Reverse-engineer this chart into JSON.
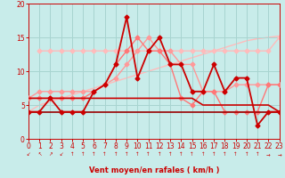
{
  "bg_color": "#c8ecea",
  "grid_color": "#a8d4d0",
  "xlabel": "Vent moyen/en rafales ( km/h )",
  "xlabel_color": "#cc0000",
  "ylim": [
    0,
    20
  ],
  "xlim": [
    0,
    23
  ],
  "yticks": [
    0,
    5,
    10,
    15,
    20
  ],
  "xticks": [
    0,
    1,
    2,
    3,
    4,
    5,
    6,
    7,
    8,
    9,
    10,
    11,
    12,
    13,
    14,
    15,
    16,
    17,
    18,
    19,
    20,
    21,
    22,
    23
  ],
  "tick_color": "#cc0000",
  "series": [
    {
      "note": "light pink diagonal - rising line from ~4 to ~15",
      "x": [
        0,
        1,
        2,
        3,
        4,
        5,
        6,
        7,
        8,
        9,
        10,
        11,
        12,
        13,
        14,
        15,
        16,
        17,
        18,
        19,
        20,
        21,
        22,
        23
      ],
      "y": [
        4.0,
        5.0,
        5.5,
        6.0,
        6.5,
        7.0,
        7.5,
        8.0,
        8.5,
        9.0,
        9.5,
        10.0,
        10.5,
        11.0,
        11.5,
        12.0,
        12.5,
        13.0,
        13.5,
        14.0,
        14.5,
        14.8,
        15.0,
        15.2
      ],
      "color": "#ffbbbb",
      "lw": 1.0,
      "marker": null,
      "ms": 0,
      "zorder": 1
    },
    {
      "note": "light pink near-flat line ~13, with marker at end ~15",
      "x": [
        1,
        2,
        3,
        4,
        5,
        6,
        7,
        8,
        9,
        10,
        11,
        12,
        13,
        14,
        15,
        16,
        17,
        18,
        19,
        20,
        21,
        22,
        23
      ],
      "y": [
        13,
        13,
        13,
        13,
        13,
        13,
        13,
        13,
        13,
        13,
        13,
        13,
        13,
        13,
        13,
        13,
        13,
        13,
        13,
        13,
        13,
        13,
        15
      ],
      "color": "#ffbbbb",
      "lw": 1.0,
      "marker": "D",
      "ms": 2.5,
      "zorder": 2
    },
    {
      "note": "medium pink line with markers - rises to ~15 at x=11-12, then declines",
      "x": [
        0,
        1,
        2,
        3,
        4,
        5,
        6,
        7,
        8,
        9,
        10,
        11,
        12,
        13,
        14,
        15,
        16,
        17,
        18,
        19,
        20,
        21,
        22,
        23
      ],
      "y": [
        6,
        7,
        7,
        7,
        7,
        7,
        7,
        8,
        9,
        11,
        13,
        15,
        13,
        13,
        11,
        11,
        7,
        7,
        7,
        8,
        8,
        8,
        8,
        8
      ],
      "color": "#ff9999",
      "lw": 1.0,
      "marker": "D",
      "ms": 2.5,
      "zorder": 3
    },
    {
      "note": "medium-light pink volatile line with markers",
      "x": [
        0,
        1,
        2,
        3,
        4,
        5,
        6,
        7,
        8,
        9,
        10,
        11,
        12,
        13,
        14,
        15,
        16,
        17,
        18,
        19,
        20,
        21,
        22,
        23
      ],
      "y": [
        6,
        6,
        6,
        6,
        6,
        6,
        7,
        8,
        11,
        13,
        15,
        13,
        13,
        11,
        6,
        5,
        7,
        7,
        4,
        4,
        4,
        4,
        8,
        8
      ],
      "color": "#ff7777",
      "lw": 1.0,
      "marker": "D",
      "ms": 2.5,
      "zorder": 4
    },
    {
      "note": "dark red flat line ~4",
      "x": [
        0,
        1,
        2,
        3,
        4,
        5,
        6,
        7,
        8,
        9,
        10,
        11,
        12,
        13,
        14,
        15,
        16,
        17,
        18,
        19,
        20,
        21,
        22,
        23
      ],
      "y": [
        4,
        4,
        4,
        4,
        4,
        4,
        4,
        4,
        4,
        4,
        4,
        4,
        4,
        4,
        4,
        4,
        4,
        4,
        4,
        4,
        4,
        4,
        4,
        4
      ],
      "color": "#990000",
      "lw": 1.2,
      "marker": null,
      "ms": 0,
      "zorder": 5
    },
    {
      "note": "dark red flat/slightly sloped ~6",
      "x": [
        0,
        1,
        2,
        3,
        4,
        5,
        6,
        7,
        8,
        9,
        10,
        11,
        12,
        13,
        14,
        15,
        16,
        17,
        18,
        19,
        20,
        21,
        22,
        23
      ],
      "y": [
        6,
        6,
        6,
        6,
        6,
        6,
        6,
        6,
        6,
        6,
        6,
        6,
        6,
        6,
        6,
        6,
        5,
        5,
        5,
        5,
        5,
        5,
        5,
        4
      ],
      "color": "#cc0000",
      "lw": 1.2,
      "marker": null,
      "ms": 0,
      "zorder": 6
    },
    {
      "note": "main dark red volatile line with diamond markers",
      "x": [
        0,
        1,
        2,
        3,
        4,
        5,
        6,
        7,
        8,
        9,
        10,
        11,
        12,
        13,
        14,
        15,
        16,
        17,
        18,
        19,
        20,
        21,
        22,
        23
      ],
      "y": [
        4,
        4,
        6,
        4,
        4,
        4,
        7,
        8,
        11,
        18,
        9,
        13,
        15,
        11,
        11,
        7,
        7,
        11,
        7,
        9,
        9,
        2,
        4,
        4
      ],
      "color": "#cc0000",
      "lw": 1.3,
      "marker": "D",
      "ms": 2.5,
      "zorder": 7
    }
  ],
  "wind_sym_color": "#cc0000",
  "wind_arrows": [
    "↙",
    "↖",
    "↗",
    "↙",
    "↑",
    "↑",
    "↑",
    "↑",
    "↑",
    "↑",
    "↑",
    "↑",
    "↑",
    "↑",
    "↑",
    "↑",
    "↑",
    "↑",
    "↑",
    "↑",
    "↑",
    "↑",
    "→",
    "→"
  ]
}
